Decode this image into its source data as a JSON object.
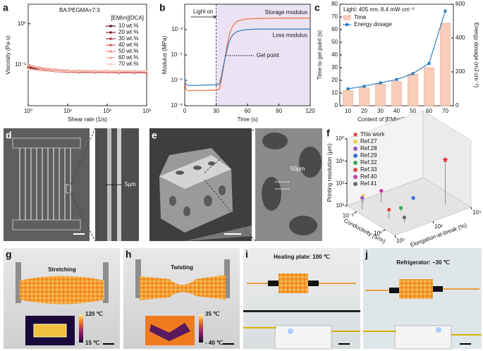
{
  "chart_data": [
    {
      "type": "line",
      "panel": "a",
      "xscale": "log",
      "yscale": "log",
      "markers": true,
      "xlabel": "Shear rate (1/s)",
      "ylabel": "Viscosity (Pa·s)",
      "legend_title": [
        "BA:PEGMA=7:3",
        "[EMIm][DCA]"
      ],
      "x": [
        1,
        2,
        5,
        10,
        20,
        50,
        100,
        200,
        500,
        1000
      ],
      "xlim": [
        1,
        1000
      ],
      "xticks": [
        {
          "value": 1,
          "label": "10⁰"
        },
        {
          "value": 10,
          "label": "10¹"
        },
        {
          "value": 100,
          "label": "10²"
        },
        {
          "value": 1000,
          "label": "10³"
        }
      ],
      "ylim": [
        0.01,
        3
      ],
      "yticks": [
        {
          "value": 0.1,
          "label": "10⁻¹"
        },
        {
          "value": 1,
          "label": "10⁰"
        }
      ],
      "series": [
        {
          "name": "10 wt.%",
          "color": "#5a0f1e",
          "values": [
            0.09,
            0.075,
            0.07,
            0.068,
            0.067,
            0.066,
            0.066,
            0.066,
            0.066,
            0.066
          ]
        },
        {
          "name": "20 wt.%",
          "color": "#8b1a2b",
          "values": [
            0.085,
            0.073,
            0.069,
            0.067,
            0.066,
            0.066,
            0.065,
            0.065,
            0.065,
            0.065
          ]
        },
        {
          "name": "30 wt.%",
          "color": "#b8323f",
          "values": [
            0.08,
            0.072,
            0.068,
            0.066,
            0.065,
            0.065,
            0.065,
            0.064,
            0.064,
            0.064
          ]
        },
        {
          "name": "40 wt.%",
          "color": "#d95f5f",
          "values": [
            0.082,
            0.074,
            0.07,
            0.068,
            0.067,
            0.067,
            0.066,
            0.066,
            0.066,
            0.066
          ]
        },
        {
          "name": "50 wt.%",
          "color": "#ec8a7e",
          "values": [
            0.1,
            0.085,
            0.077,
            0.073,
            0.072,
            0.071,
            0.071,
            0.071,
            0.07,
            0.07
          ]
        },
        {
          "name": "60 wt.%",
          "color": "#f3aa9c",
          "values": [
            0.095,
            0.08,
            0.075,
            0.072,
            0.071,
            0.07,
            0.07,
            0.07,
            0.07,
            0.07
          ]
        },
        {
          "name": "70 wt.%",
          "color": "#f8c9bd",
          "values": [
            0.078,
            0.072,
            0.069,
            0.068,
            0.068,
            0.068,
            0.068,
            0.068,
            0.068,
            0.068
          ]
        }
      ]
    },
    {
      "type": "line",
      "panel": "b",
      "yscale": "log",
      "xlabel": "Time (s)",
      "ylabel": "Modulus (MPa)",
      "x": [
        0,
        1,
        3,
        5,
        10,
        20,
        30,
        33,
        35,
        37,
        39,
        41,
        43,
        46,
        50,
        55,
        60,
        70,
        80,
        100,
        120
      ],
      "xlim": [
        0,
        120
      ],
      "xticks": [
        0,
        30,
        60,
        90,
        120
      ],
      "ylim": [
        1e-08,
        1
      ],
      "yticks": [
        {
          "value": 1e-08,
          "label": "10⁻⁸"
        },
        {
          "value": 1e-06,
          "label": "10⁻⁶"
        },
        {
          "value": 0.0001,
          "label": "10⁻⁴"
        },
        {
          "value": 0.01,
          "label": "10⁻²"
        }
      ],
      "light_on": {
        "label": "Light on",
        "x": 30,
        "color": "#ebe3f3"
      },
      "gel_point": {
        "label": "Gel point",
        "x": 39,
        "y": 9e-05
      },
      "series": [
        {
          "name": "Storage modulus",
          "color": "#f26b3a",
          "values": [
            1e-06,
            2e-07,
            1.5e-07,
            1.5e-07,
            1.6e-07,
            1.6e-07,
            1.7e-07,
            2e-07,
            1e-06,
            1e-05,
            0.0001,
            0.001,
            0.005,
            0.02,
            0.045,
            0.06,
            0.07,
            0.075,
            0.078,
            0.08,
            0.08
          ]
        },
        {
          "name": "Loss modulus",
          "color": "#2e7bbf",
          "values": [
            1.5e-06,
            5e-07,
            4e-07,
            4e-07,
            4e-07,
            4.2e-07,
            4.5e-07,
            5e-07,
            2e-06,
            1.5e-05,
            8e-05,
            0.0004,
            0.0015,
            0.004,
            0.007,
            0.009,
            0.01,
            0.011,
            0.011,
            0.011,
            0.011
          ]
        }
      ]
    },
    {
      "type": "bar",
      "panel": "c",
      "title": "Light: 405 nm, 8.4 mW·cm⁻²",
      "xlabel": "Content of [EMIm][DCA] (wt.%)",
      "ylabel": "Time to gel point (s)",
      "y2label": "Energy dosage (mJ·cm⁻²)",
      "categories": [
        "10",
        "20",
        "30",
        "40",
        "50",
        "60",
        "70"
      ],
      "ylim": [
        0,
        80
      ],
      "yticks": [
        0,
        10,
        20,
        30,
        40,
        50,
        60,
        70,
        80
      ],
      "y2lim": [
        0,
        600
      ],
      "y2ticks": [
        0,
        200,
        400,
        600
      ],
      "series": [
        {
          "name": "Time",
          "type": "bar",
          "color": "#f9cdb9",
          "values": [
            12,
            14,
            17,
            19,
            25,
            30,
            65
          ]
        },
        {
          "name": "Energy dosage",
          "type": "line",
          "axis": "y2",
          "color": "#2f7fc1",
          "values": [
            100,
            115,
            135,
            155,
            190,
            250,
            560
          ]
        }
      ]
    },
    {
      "type": "scatter3d",
      "panel": "f",
      "zlabel": "Printing resolution (μm)",
      "xlabel": "Conductivity (S/m)",
      "ylabel": "Elongation-at-break (%)",
      "resolution_lim": [
        1,
        1000
      ],
      "resolution_ticks": [
        {
          "value": 1,
          "label": "10⁰"
        },
        {
          "value": 10,
          "label": "10¹"
        },
        {
          "value": 100,
          "label": "10²"
        },
        {
          "value": 1000,
          "label": "10³"
        }
      ],
      "conductivity_lim": [
        0.0001,
        10
      ],
      "conductivity_ticks": [
        {
          "value": 0.001,
          "label": "10⁻³"
        },
        {
          "value": 1,
          "label": "10⁰"
        }
      ],
      "elongation_lim": [
        1,
        10000
      ],
      "elongation_ticks": [
        {
          "value": 1,
          "label": "10⁰"
        },
        {
          "value": 100,
          "label": "10²"
        },
        {
          "value": 10000,
          "label": "10⁴"
        }
      ],
      "series": [
        {
          "name": "This work",
          "color": "#e8303a",
          "marker": "star",
          "conductivity": 0.5,
          "elongation": 2000,
          "resolution": 10
        },
        {
          "name": "Ref.27",
          "color": "#e8d44a",
          "conductivity": 0.0002,
          "elongation": 5,
          "resolution": 500
        },
        {
          "name": "Ref.28",
          "color": "#9b59b6",
          "conductivity": 0.001,
          "elongation": 2,
          "resolution": 300
        },
        {
          "name": "Ref.29",
          "color": "#3b6fd4",
          "conductivity": 0.01,
          "elongation": 300,
          "resolution": 800
        },
        {
          "name": "Ref.32",
          "color": "#3aa655",
          "conductivity": 0.05,
          "elongation": 30,
          "resolution": 700
        },
        {
          "name": "Ref.33",
          "color": "#e04848",
          "conductivity": 0.1,
          "elongation": 5,
          "resolution": 400
        },
        {
          "name": "Ref.40",
          "color": "#c63fa8",
          "conductivity": 0.001,
          "elongation": 20,
          "resolution": 300
        },
        {
          "name": "Ref.41",
          "color": "#6b6b6b",
          "conductivity": 1,
          "elongation": 10,
          "resolution": 600
        }
      ]
    }
  ],
  "photos": {
    "d": {
      "panel": "d",
      "scale": "5μm"
    },
    "e": {
      "panel": "e",
      "scale": "50μm"
    },
    "g": {
      "panel": "g",
      "title": "Stretching",
      "temp_max": "120 ℃",
      "temp_min": "15 ℃"
    },
    "h": {
      "panel": "h",
      "title": "Twisting",
      "temp_max": "35 ℃",
      "temp_min": "- 40 ℃"
    },
    "i": {
      "panel": "i",
      "title": "Heating plate: 100 ℃"
    },
    "j": {
      "panel": "j",
      "title": "Refrigerator: −30 ℃"
    }
  }
}
